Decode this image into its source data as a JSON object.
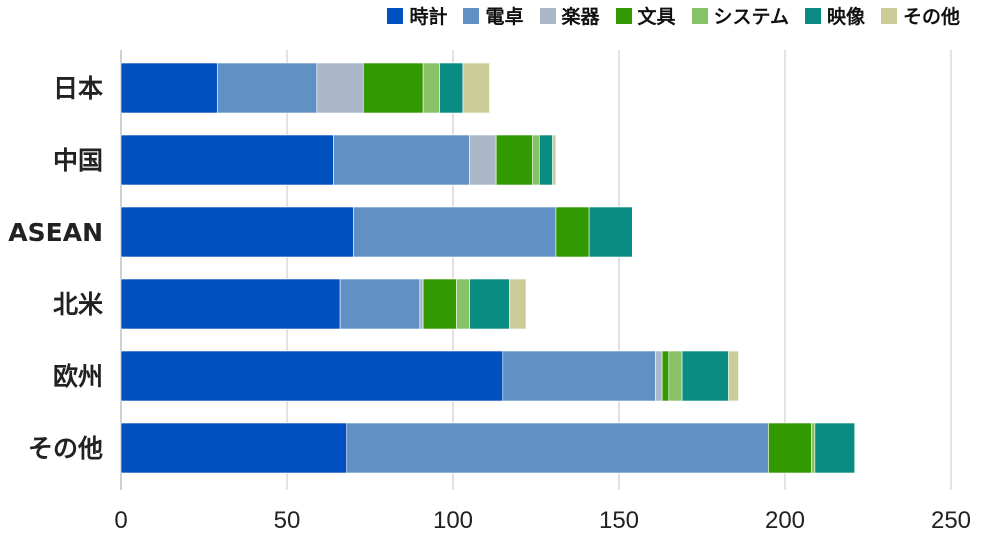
{
  "chart_data": {
    "type": "bar",
    "orientation": "horizontal",
    "stacked": true,
    "title": "",
    "xlabel": "",
    "ylabel": "",
    "xlim": [
      0,
      250
    ],
    "x_ticks": [
      "0",
      "50",
      "100",
      "150",
      "200",
      "250"
    ],
    "categories": [
      "日本",
      "中国",
      "ASEAN",
      "北米",
      "欧州",
      "その他"
    ],
    "legend_position": "top-right",
    "grid": true,
    "series": [
      {
        "name": "時計",
        "color": "#0050c0",
        "values": [
          29,
          64,
          70,
          66,
          115,
          68
        ]
      },
      {
        "name": "電卓",
        "color": "#6090c4",
        "values": [
          30,
          41,
          61,
          24,
          46,
          127
        ]
      },
      {
        "name": "楽器",
        "color": "#a9b7c9",
        "values": [
          14,
          8,
          0,
          1,
          2,
          0
        ]
      },
      {
        "name": "文具",
        "color": "#339900",
        "values": [
          18,
          11,
          10,
          10,
          2,
          13
        ]
      },
      {
        "name": "システム",
        "color": "#88c266",
        "values": [
          5,
          2,
          0,
          4,
          4,
          1
        ]
      },
      {
        "name": "映像",
        "color": "#0a8c82",
        "values": [
          7,
          4,
          13,
          12,
          14,
          12
        ]
      },
      {
        "name": "その他",
        "color": "#cccc99",
        "values": [
          8,
          1,
          0,
          5,
          3,
          0
        ]
      }
    ]
  }
}
